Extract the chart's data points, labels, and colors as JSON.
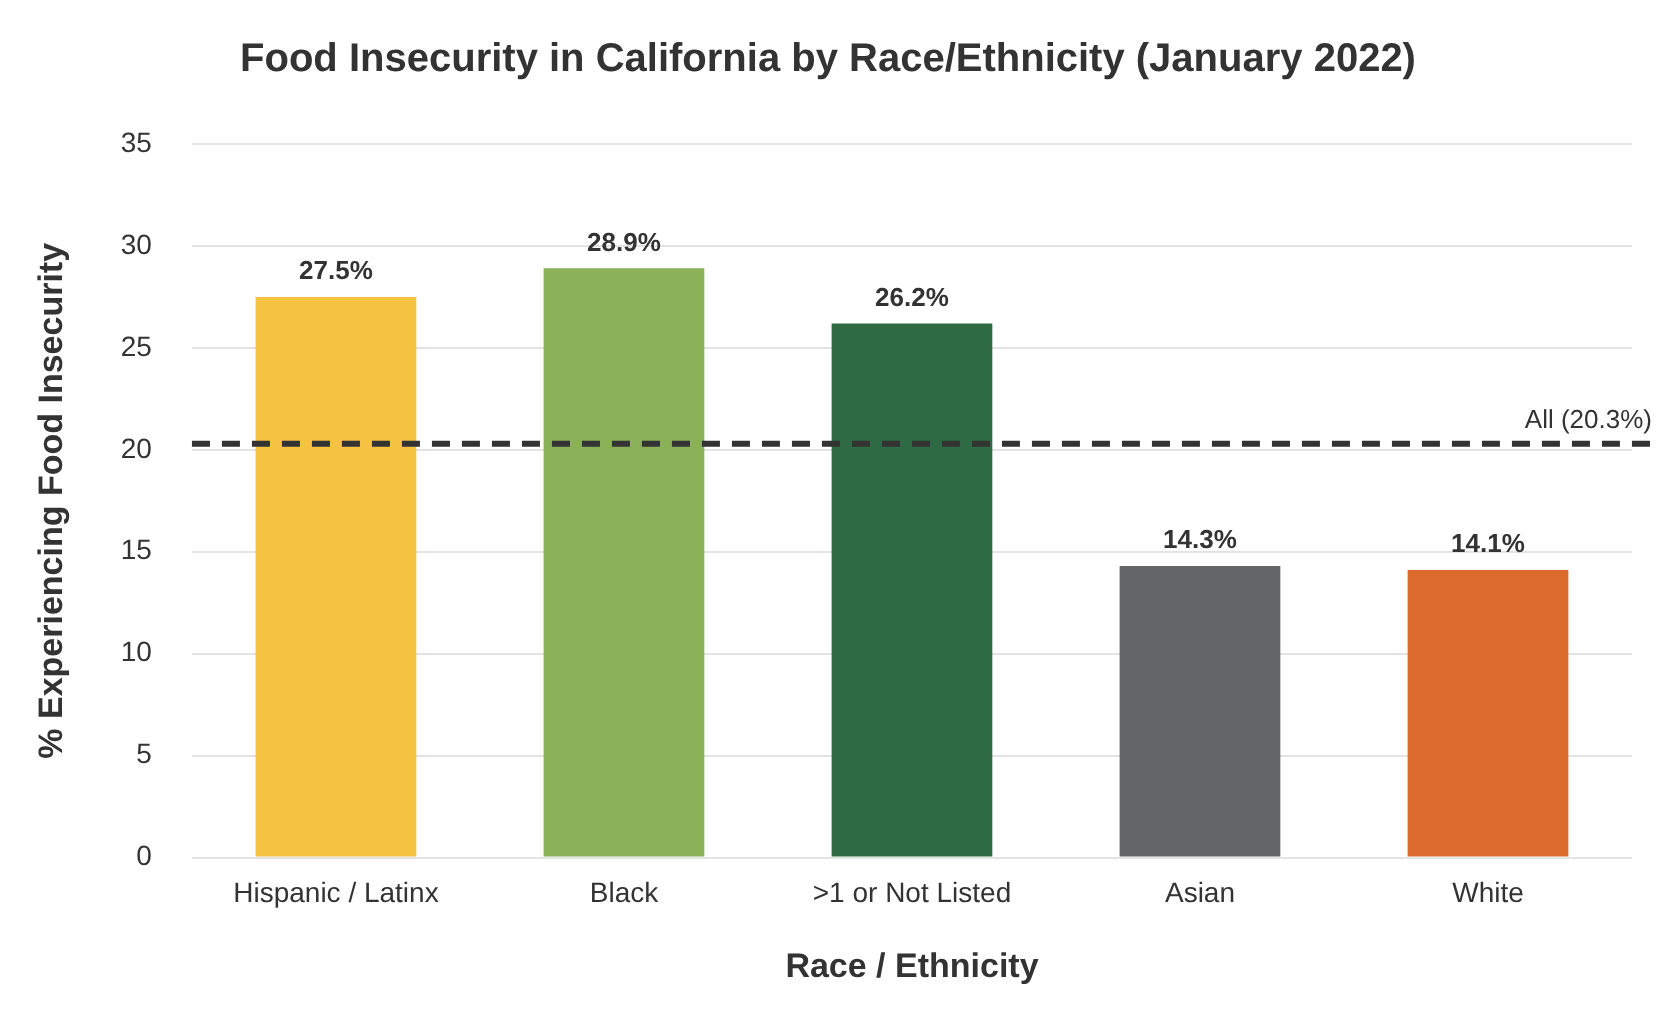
{
  "chart_data": {
    "type": "bar",
    "title": "Food Insecurity in California by Race/Ethnicity (January 2022)",
    "xlabel": "Race / Ethnicity",
    "ylabel": "% Experiencing Food Insecurity",
    "categories": [
      "Hispanic / Latinx",
      "Black",
      ">1 or Not Listed",
      "Asian",
      "White"
    ],
    "values": [
      27.5,
      28.9,
      26.2,
      14.3,
      14.1
    ],
    "colors": [
      "#f5c242",
      "#8ab158",
      "#2e6b45",
      "#636466",
      "#dc6a2d"
    ],
    "value_labels": [
      "27.5%",
      "28.9%",
      "26.2%",
      "14.3%",
      "14.1%"
    ],
    "ylim": [
      0,
      35
    ],
    "yticks": [
      0,
      5,
      10,
      15,
      20,
      25,
      30,
      35
    ],
    "grid": "y",
    "legend": false,
    "ref_lines": [
      {
        "axis": "y",
        "value": 20.3,
        "label": "All (20.3%)",
        "color": "#333333",
        "line_style": "dashed"
      }
    ]
  }
}
